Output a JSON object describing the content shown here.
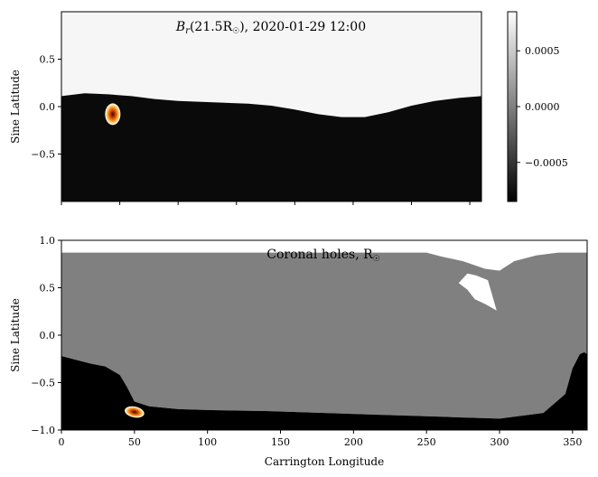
{
  "chart_data": [
    {
      "type": "heatmap",
      "title_main": "B",
      "title_sub": "r",
      "title_rest": "(21.5R",
      "title_sun": "☉",
      "title_end": "), 2020-01-29 12:00",
      "xlabel": "",
      "ylabel": "Sine Latitude",
      "xlim": [
        0,
        360
      ],
      "ylim": [
        -1.0,
        1.0
      ],
      "yticks": [
        {
          "value": 0.5,
          "label": "0.5"
        },
        {
          "value": 0.0,
          "label": "0.0"
        },
        {
          "value": -0.5,
          "label": "−0.5"
        }
      ],
      "xticks": [
        0,
        50,
        100,
        150,
        200,
        250,
        300,
        350
      ],
      "xtick_labels_shown": false,
      "polarity_boundary": {
        "x": [
          0,
          20,
          40,
          60,
          80,
          100,
          120,
          140,
          160,
          180,
          200,
          220,
          240,
          260,
          280,
          300,
          320,
          340,
          360
        ],
        "y": [
          0.11,
          0.14,
          0.13,
          0.11,
          0.08,
          0.06,
          0.05,
          0.04,
          0.03,
          0.01,
          -0.03,
          -0.08,
          -0.11,
          -0.11,
          -0.06,
          0.01,
          0.06,
          0.09,
          0.11
        ]
      },
      "positive_region": "above",
      "background_colors": {
        "positive": "#f6f6f6",
        "negative": "#0a0a0a"
      },
      "hotspot": {
        "lon": 44,
        "lat": -0.08
      },
      "colorbar": {
        "vmin": -0.00085,
        "vmax": 0.00085,
        "ticks": [
          {
            "value": 0.0005,
            "label": "0.0005"
          },
          {
            "value": 0.0,
            "label": "0.0000"
          },
          {
            "value": -0.0005,
            "label": "−0.0005"
          }
        ]
      }
    },
    {
      "type": "heatmap",
      "title_main": "Coronal holes, R",
      "title_sun": "☉",
      "xlabel": "Carrington Longitude",
      "ylabel": "Sine Latitude",
      "xlim": [
        0,
        360
      ],
      "ylim": [
        -1.0,
        1.0
      ],
      "xticks": [
        {
          "value": 0,
          "label": "0"
        },
        {
          "value": 50,
          "label": "50"
        },
        {
          "value": 100,
          "label": "100"
        },
        {
          "value": 150,
          "label": "150"
        },
        {
          "value": 200,
          "label": "200"
        },
        {
          "value": 250,
          "label": "250"
        },
        {
          "value": 300,
          "label": "300"
        },
        {
          "value": 350,
          "label": "350"
        }
      ],
      "yticks": [
        {
          "value": 1.0,
          "label": "1.0"
        },
        {
          "value": 0.5,
          "label": "0.5"
        },
        {
          "value": 0.0,
          "label": "0.0"
        },
        {
          "value": -0.5,
          "label": "−0.5"
        },
        {
          "value": -1.0,
          "label": "−1.0"
        }
      ],
      "region_colors": {
        "open_positive": "#ffffff",
        "closed": "#808080",
        "open_negative": "#000000"
      },
      "north_boundary": {
        "x": [
          0,
          250,
          260,
          275,
          290,
          300,
          310,
          325,
          340,
          360
        ],
        "y": [
          0.87,
          0.87,
          0.83,
          0.78,
          0.7,
          0.68,
          0.78,
          0.84,
          0.87,
          0.87
        ]
      },
      "north_gap": {
        "x": [
          272,
          278,
          284,
          292,
          298,
          290,
          283,
          278
        ],
        "y": [
          0.55,
          0.65,
          0.63,
          0.58,
          0.26,
          0.33,
          0.38,
          0.48
        ]
      },
      "south_boundary": {
        "x": [
          0,
          20,
          30,
          40,
          45,
          50,
          60,
          80,
          100,
          140,
          180,
          220,
          260,
          300,
          330,
          345,
          350,
          355,
          358,
          360
        ],
        "y": [
          -0.22,
          -0.3,
          -0.33,
          -0.42,
          -0.55,
          -0.7,
          -0.75,
          -0.78,
          -0.79,
          -0.8,
          -0.82,
          -0.84,
          -0.86,
          -0.88,
          -0.82,
          -0.62,
          -0.35,
          -0.2,
          -0.18,
          -0.2
        ]
      },
      "hotspot": {
        "lon": 50,
        "lat": -0.81
      }
    }
  ]
}
